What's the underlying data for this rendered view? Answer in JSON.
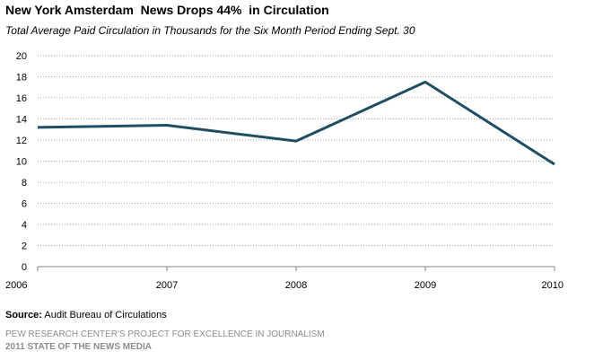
{
  "chart_data": {
    "type": "line",
    "title": "New York Amsterdam  News Drops 44%  in Circulation",
    "subtitle": "Total Average Paid Circulation in Thousands for the Six Month Period Ending Sept. 30",
    "x": [
      "2006",
      "2007",
      "2008",
      "2009",
      "2010"
    ],
    "series": [
      {
        "values": [
          13.2,
          13.4,
          11.9,
          17.5,
          9.7
        ]
      }
    ],
    "ylim": [
      0,
      20
    ],
    "yticks": [
      0,
      2,
      4,
      6,
      8,
      10,
      12,
      14,
      16,
      18,
      20
    ],
    "grid": true,
    "line_color": "#1f4e64"
  },
  "source": {
    "label": "Source:",
    "text": " Audit Bureau of Circulations"
  },
  "credits": {
    "line1": "PEW RESEARCH CENTER'S PROJECT FOR EXCELLENCE IN JOURNALISM",
    "line2": "2011 STATE OF THE NEWS MEDIA"
  }
}
